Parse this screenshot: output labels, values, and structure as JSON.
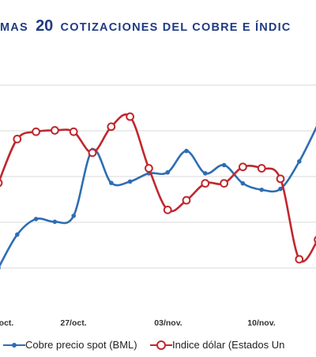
{
  "title": {
    "prefix": "MAS",
    "number": "20",
    "suffix": "COTIZACIONES DEL COBRE E ÍNDIC"
  },
  "chart_data": {
    "type": "line",
    "dual_axis": true,
    "grid": true,
    "legend_position": "bottom",
    "x_tick_labels": [
      "oct.",
      "27/oct.",
      "03/nov.",
      "10/nov."
    ],
    "series": [
      {
        "name": "Cobre precio spot (BML)",
        "color": "#2e6db4",
        "marker": "dot",
        "values": [
          0.0,
          0.73,
          1.07,
          1.01,
          1.14,
          2.58,
          1.86,
          1.89,
          2.07,
          2.09,
          2.56,
          2.07,
          2.25,
          1.85,
          1.71,
          1.73,
          2.33,
          3.15
        ]
      },
      {
        "name": "Indice dólar (Estados Un",
        "color": "#c0272d",
        "marker": "ring",
        "values": [
          1.86,
          2.82,
          2.98,
          3.01,
          2.98,
          2.52,
          3.09,
          3.31,
          2.18,
          1.27,
          1.48,
          1.85,
          1.85,
          2.21,
          2.18,
          1.95,
          0.19,
          0.62
        ]
      }
    ]
  }
}
